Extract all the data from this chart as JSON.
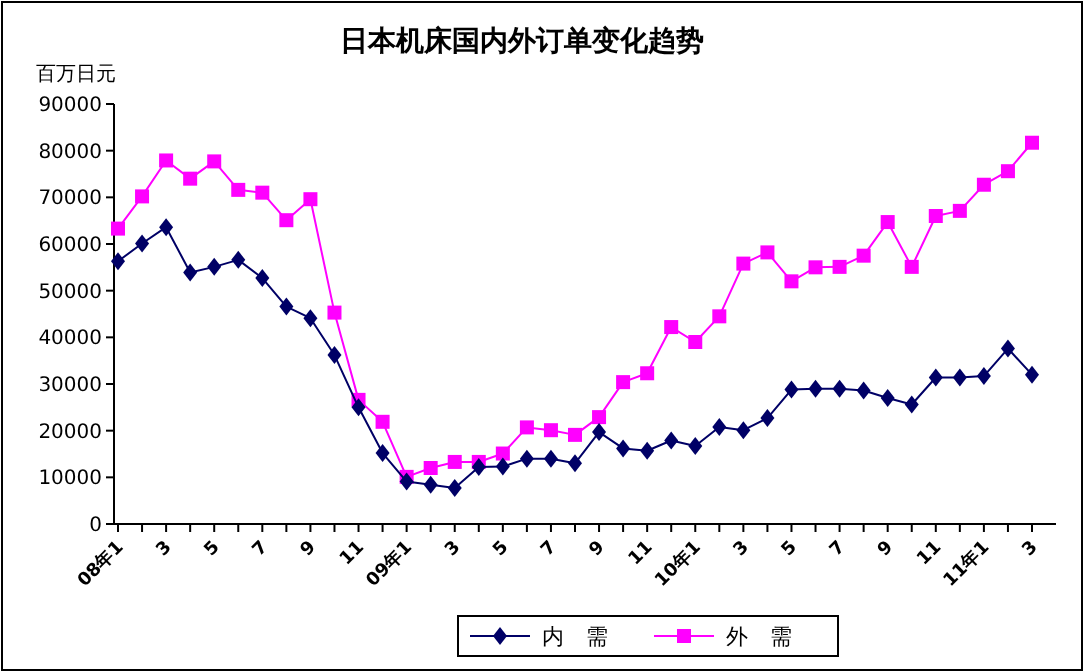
{
  "chart_data": {
    "type": "line",
    "title": "日本机床国内外订单变化趋势",
    "ylabel": "百万日元",
    "categories": [
      "08年1",
      null,
      "3",
      null,
      "5",
      null,
      "7",
      null,
      "9",
      null,
      "11",
      null,
      "09年1",
      null,
      "3",
      null,
      "5",
      null,
      "7",
      null,
      "9",
      null,
      "11",
      null,
      "10年1",
      null,
      "3",
      null,
      "5",
      null,
      "7",
      null,
      "9",
      null,
      "11",
      null,
      "11年1",
      null,
      "3"
    ],
    "series": [
      {
        "name": "内　需",
        "color": "#000066",
        "marker": "diamond",
        "values": [
          56300,
          60100,
          63600,
          53900,
          55100,
          56600,
          52700,
          46600,
          44100,
          36200,
          25000,
          15200,
          9100,
          8400,
          7700,
          12200,
          12300,
          14000,
          14000,
          13000,
          19700,
          16200,
          15700,
          17900,
          16700,
          20800,
          20100,
          22700,
          28800,
          29000,
          29000,
          28600,
          27000,
          25600,
          31400,
          31400,
          31700,
          37600,
          32000
        ]
      },
      {
        "name": "外　需",
        "color": "#ff00ff",
        "marker": "square",
        "values": [
          63300,
          70200,
          77900,
          74000,
          77700,
          71600,
          71000,
          65100,
          69600,
          45300,
          26600,
          21900,
          10100,
          12000,
          13300,
          13300,
          15100,
          20700,
          20100,
          19100,
          22900,
          30400,
          32300,
          42200,
          39000,
          44500,
          55800,
          58200,
          52000,
          55000,
          55100,
          57500,
          64700,
          55100,
          66000,
          67100,
          72700,
          75600,
          81700
        ]
      }
    ],
    "ylim": [
      0,
      90000
    ],
    "yticks": [
      0,
      10000,
      20000,
      30000,
      40000,
      50000,
      60000,
      70000,
      80000,
      90000
    ],
    "grid": false,
    "legend": "bottom",
    "line_style": "solid"
  }
}
